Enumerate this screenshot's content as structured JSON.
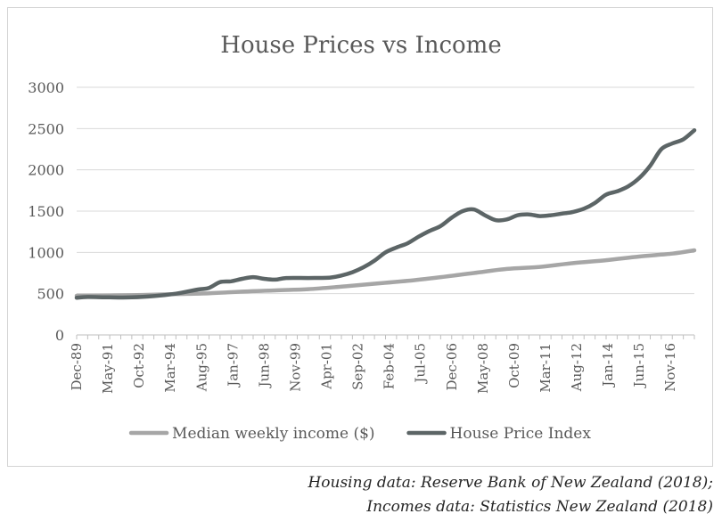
{
  "chart_data": {
    "type": "line",
    "title": "House Prices vs Income",
    "xlabel": "",
    "ylabel": "",
    "ylim": [
      0,
      3000
    ],
    "yticks": [
      0,
      500,
      1000,
      1500,
      2000,
      2500,
      3000
    ],
    "x_tick_labels": [
      "Dec-89",
      "May-91",
      "Oct-92",
      "Mar-94",
      "Aug-95",
      "Jan-97",
      "Jun-98",
      "Nov-99",
      "Apr-01",
      "Sep-02",
      "Feb-04",
      "Jul-05",
      "Dec-06",
      "May-08",
      "Oct-09",
      "Mar-11",
      "Aug-12",
      "Jan-14",
      "Jun-15",
      "Nov-16"
    ],
    "x_range": [
      "Dec-89",
      "Dec-17"
    ],
    "grid": "horizontal",
    "legend_position": "bottom",
    "series": [
      {
        "name": "Median weekly income ($)",
        "color": "#a6a6a6",
        "points": [
          [
            "Dec-89",
            475
          ],
          [
            "Jun-91",
            478
          ],
          [
            "Dec-92",
            485
          ],
          [
            "Jun-94",
            495
          ],
          [
            "Dec-95",
            505
          ],
          [
            "Jun-97",
            525
          ],
          [
            "Dec-98",
            540
          ],
          [
            "Jun-00",
            555
          ],
          [
            "Dec-01",
            585
          ],
          [
            "Jun-03",
            620
          ],
          [
            "Dec-04",
            655
          ],
          [
            "Jun-06",
            700
          ],
          [
            "Dec-07",
            750
          ],
          [
            "Jun-09",
            800
          ],
          [
            "Dec-10",
            825
          ],
          [
            "Jun-12",
            870
          ],
          [
            "Dec-13",
            905
          ],
          [
            "Jun-15",
            950
          ],
          [
            "Dec-16",
            985
          ],
          [
            "Dec-17",
            1025
          ]
        ]
      },
      {
        "name": "House Price Index",
        "color": "#5c6566",
        "points": [
          [
            "Dec-89",
            450
          ],
          [
            "Jun-90",
            460
          ],
          [
            "Jun-91",
            455
          ],
          [
            "Jun-92",
            455
          ],
          [
            "Jun-93",
            470
          ],
          [
            "Jun-94",
            500
          ],
          [
            "Jun-95",
            550
          ],
          [
            "Dec-95",
            570
          ],
          [
            "Jun-96",
            640
          ],
          [
            "Dec-96",
            650
          ],
          [
            "Jun-97",
            680
          ],
          [
            "Dec-97",
            700
          ],
          [
            "Jun-98",
            680
          ],
          [
            "Dec-98",
            670
          ],
          [
            "Jun-99",
            690
          ],
          [
            "Jun-00",
            690
          ],
          [
            "Jun-01",
            695
          ],
          [
            "Dec-01",
            720
          ],
          [
            "Jun-02",
            760
          ],
          [
            "Dec-02",
            820
          ],
          [
            "Jun-03",
            900
          ],
          [
            "Dec-03",
            1000
          ],
          [
            "Jun-04",
            1060
          ],
          [
            "Dec-04",
            1110
          ],
          [
            "Jun-05",
            1190
          ],
          [
            "Dec-05",
            1260
          ],
          [
            "Jun-06",
            1320
          ],
          [
            "Dec-06",
            1420
          ],
          [
            "Jun-07",
            1500
          ],
          [
            "Dec-07",
            1520
          ],
          [
            "Jun-08",
            1450
          ],
          [
            "Dec-08",
            1390
          ],
          [
            "Jun-09",
            1400
          ],
          [
            "Dec-09",
            1450
          ],
          [
            "Jun-10",
            1460
          ],
          [
            "Dec-10",
            1440
          ],
          [
            "Jun-11",
            1450
          ],
          [
            "Dec-11",
            1470
          ],
          [
            "Jun-12",
            1490
          ],
          [
            "Dec-12",
            1530
          ],
          [
            "Jun-13",
            1600
          ],
          [
            "Dec-13",
            1700
          ],
          [
            "Jun-14",
            1740
          ],
          [
            "Dec-14",
            1800
          ],
          [
            "Jun-15",
            1900
          ],
          [
            "Dec-15",
            2050
          ],
          [
            "Jun-16",
            2250
          ],
          [
            "Dec-16",
            2320
          ],
          [
            "Jun-17",
            2370
          ],
          [
            "Dec-17",
            2480
          ]
        ]
      }
    ]
  },
  "sources": {
    "line1": "Housing data: Reserve Bank of New Zealand (2018);",
    "line2": "Incomes data: Statistics New Zealand (2018)"
  }
}
